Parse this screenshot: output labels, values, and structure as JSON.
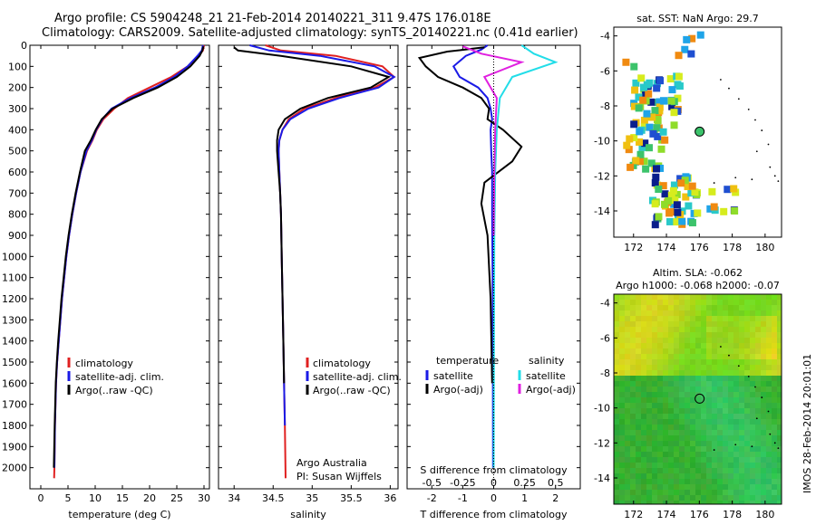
{
  "header": {
    "line1": "Argo profile: CS 5904248_21 21-Feb-2014 20140221_311 9.47S 176.018E",
    "line2": "Climatology: CARS2009. Satellite-adjusted climatology: synTS_20140221.nc (0.41d earlier)"
  },
  "stamp": "IMOS 28-Feb-2014 20:01:01",
  "colors": {
    "climatology": "#e02020",
    "satellite": "#1a1ae6",
    "argo": "#000000",
    "sat_salinity": "#22dde8",
    "argo_salinity": "#e020e0"
  },
  "chart_data": [
    {
      "type": "line",
      "name": "temperature-panel",
      "xlabel": "temperature (deg C)",
      "ylabel": "",
      "xlim": [
        -2,
        31
      ],
      "ylim": [
        2100,
        0
      ],
      "xticks": [
        0,
        5,
        10,
        15,
        20,
        25,
        30
      ],
      "yticks": [
        0,
        100,
        200,
        300,
        400,
        500,
        600,
        700,
        800,
        900,
        1000,
        1100,
        1200,
        1300,
        1400,
        1500,
        1600,
        1700,
        1800,
        1900,
        2000
      ],
      "legend": [
        "climatology",
        "satellite-adj. clim.",
        "Argo(..raw -QC)"
      ],
      "series": [
        {
          "name": "climatology",
          "color": "#e02020",
          "x": [
            30,
            29.8,
            29,
            27,
            24,
            20,
            16,
            13.5,
            11.5,
            10.3,
            9.5,
            8.5,
            7.3,
            6.5,
            5.8,
            5.2,
            4.7,
            4.3,
            3.9,
            3.6,
            3.3,
            3.0,
            2.8,
            2.6,
            2.5,
            2.45
          ],
          "y": [
            0,
            25,
            50,
            100,
            150,
            200,
            250,
            300,
            350,
            400,
            450,
            500,
            600,
            700,
            800,
            900,
            1000,
            1100,
            1200,
            1300,
            1400,
            1500,
            1600,
            1800,
            2000,
            2050
          ]
        },
        {
          "name": "satellite-adj. clim.",
          "color": "#1a1ae6",
          "x": [
            29.8,
            29.6,
            28.8,
            27,
            24.5,
            21,
            16.5,
            13,
            11.3,
            10.2,
            9.4,
            8.4,
            7.3,
            6.5,
            5.8,
            5.2,
            4.7,
            4.3,
            3.9,
            3.6,
            3.3,
            3.0,
            2.8,
            2.6,
            2.5
          ],
          "y": [
            0,
            25,
            50,
            100,
            150,
            200,
            250,
            300,
            350,
            400,
            450,
            500,
            600,
            700,
            800,
            900,
            1000,
            1100,
            1200,
            1300,
            1400,
            1500,
            1600,
            1800,
            2000
          ]
        },
        {
          "name": "Argo(..raw -QC)",
          "color": "#000000",
          "x": [
            29.9,
            29.7,
            29.2,
            27.5,
            25,
            21.5,
            17,
            13.2,
            11.2,
            10.1,
            9.2,
            8.1,
            7.2,
            6.4,
            5.7,
            5.1,
            4.6,
            4.2,
            3.8,
            3.5,
            3.2,
            2.95,
            2.75,
            2.55,
            2.4
          ],
          "y": [
            5,
            25,
            50,
            100,
            150,
            200,
            250,
            300,
            350,
            400,
            450,
            500,
            600,
            700,
            800,
            900,
            1000,
            1100,
            1200,
            1300,
            1400,
            1500,
            1600,
            1800,
            2000
          ]
        }
      ]
    },
    {
      "type": "line",
      "name": "salinity-panel",
      "xlabel": "salinity",
      "ylabel": "",
      "xlim": [
        33.8,
        36.1
      ],
      "ylim": [
        2100,
        0
      ],
      "xticks": [
        34,
        34.5,
        35,
        35.5,
        36
      ],
      "legend": [
        "climatology",
        "satellite-adj. clim.",
        "Argo(..raw -QC)"
      ],
      "annotation": [
        "Argo Australia",
        "PI: Susan Wijffels"
      ],
      "series": [
        {
          "name": "climatology",
          "color": "#e02020",
          "x": [
            34.4,
            34.6,
            35.3,
            35.9,
            36.05,
            35.8,
            35.3,
            34.9,
            34.7,
            34.62,
            34.58,
            34.57,
            34.58,
            34.59,
            34.6,
            34.61,
            34.62,
            34.63,
            34.64,
            34.65,
            34.66
          ],
          "y": [
            0,
            25,
            50,
            100,
            150,
            200,
            250,
            300,
            350,
            400,
            450,
            500,
            600,
            700,
            800,
            1000,
            1200,
            1400,
            1600,
            1800,
            2050
          ]
        },
        {
          "name": "satellite-adj. clim.",
          "color": "#1a1ae6",
          "x": [
            34.2,
            34.45,
            35.1,
            35.8,
            36.05,
            35.85,
            35.35,
            34.95,
            34.72,
            34.62,
            34.58,
            34.57,
            34.58,
            34.59,
            34.6,
            34.61,
            34.62,
            34.63,
            34.64,
            34.65
          ],
          "y": [
            0,
            25,
            50,
            100,
            150,
            200,
            250,
            300,
            350,
            400,
            450,
            500,
            600,
            700,
            800,
            1000,
            1200,
            1400,
            1600,
            1800
          ]
        },
        {
          "name": "Argo(..raw -QC)",
          "color": "#000000",
          "x": [
            34.0,
            34.05,
            34.6,
            35.5,
            35.98,
            35.75,
            35.2,
            34.85,
            34.65,
            34.57,
            34.55,
            34.55,
            34.57,
            34.59,
            34.6,
            34.61,
            34.62,
            34.63,
            34.64
          ],
          "y": [
            10,
            25,
            50,
            100,
            150,
            200,
            250,
            300,
            350,
            400,
            450,
            500,
            600,
            700,
            800,
            1000,
            1200,
            1400,
            1600
          ]
        }
      ]
    },
    {
      "type": "line",
      "name": "difference-panel",
      "xlabel": "T difference from climatology",
      "ylabel": "",
      "xlim": [
        -2.8,
        2.8
      ],
      "ylim": [
        2100,
        0
      ],
      "xticks": [
        -2,
        -1,
        0,
        1,
        2
      ],
      "secondary_axis": {
        "label": "S difference from climatology",
        "ticks": [
          "-0.5",
          "-0.25",
          "0",
          "0.25",
          "0.5"
        ]
      },
      "legend": [
        {
          "group": "temperature",
          "items": [
            "satellite",
            "Argo(-adj)"
          ]
        },
        {
          "group": "salinity",
          "items": [
            "satellite",
            "Argo(-adj)"
          ]
        }
      ],
      "series": [
        {
          "name": "temperature satellite",
          "color": "#1a1ae6",
          "x": [
            -0.2,
            -0.4,
            -0.9,
            -1.3,
            -1.1,
            -0.5,
            -0.2,
            -0.1,
            -0.05,
            -0.1,
            -0.08,
            -0.05,
            -0.05,
            -0.03,
            -0.02
          ],
          "y": [
            0,
            20,
            50,
            100,
            150,
            200,
            250,
            300,
            350,
            400,
            500,
            600,
            800,
            1200,
            2000
          ]
        },
        {
          "name": "temperature Argo(-adj)",
          "color": "#000000",
          "x": [
            -0.3,
            -1.5,
            -2.4,
            -2.2,
            -1.8,
            -1.0,
            -0.4,
            -0.15,
            -0.2,
            0.3,
            0.9,
            0.6,
            -0.3,
            -0.4,
            -0.2,
            -0.1,
            -0.05
          ],
          "y": [
            10,
            30,
            60,
            100,
            150,
            200,
            250,
            300,
            350,
            400,
            480,
            550,
            650,
            750,
            900,
            1200,
            1600
          ]
        },
        {
          "name": "salinity satellite",
          "color": "#22dde8",
          "x": [
            0.9,
            1.3,
            2.0,
            0.6,
            0.2,
            0.1,
            0.05,
            0.02,
            0.01,
            0.0
          ],
          "y": [
            0,
            40,
            80,
            150,
            250,
            400,
            600,
            900,
            1400,
            2000
          ]
        },
        {
          "name": "salinity Argo(-adj)",
          "color": "#e020e0",
          "x": [
            -1.0,
            -0.4,
            0.9,
            -0.3,
            0.1,
            0.05,
            0.02,
            0.0
          ],
          "y": [
            5,
            40,
            80,
            150,
            250,
            400,
            600,
            900
          ]
        }
      ]
    },
    {
      "type": "heatmap",
      "name": "sst-map",
      "title": "sat. SST: NaN Argo: 29.7",
      "xlim": [
        170.8,
        181
      ],
      "ylim": [
        -15.5,
        -3.5
      ],
      "xticks": [
        172,
        174,
        176,
        178,
        180
      ],
      "yticks": [
        -4,
        -6,
        -8,
        -10,
        -12,
        -14
      ],
      "marker": {
        "lon": 176.018,
        "lat": -9.47
      }
    },
    {
      "type": "heatmap",
      "name": "sla-map",
      "title": [
        "Altim. SLA: -0.062",
        "Argo h1000: -0.068 h2000: -0.07"
      ],
      "xlim": [
        170.8,
        181
      ],
      "ylim": [
        -15.5,
        -3.5
      ],
      "xticks": [
        172,
        174,
        176,
        178,
        180
      ],
      "yticks": [
        -4,
        -6,
        -8,
        -10,
        -12,
        -14
      ],
      "marker": {
        "lon": 176.018,
        "lat": -9.47
      }
    }
  ]
}
